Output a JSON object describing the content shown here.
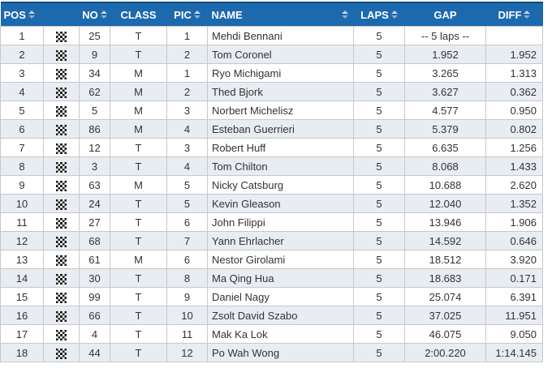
{
  "colors": {
    "header_bg": "#1c69ae",
    "header_border_top": "#0d4c84",
    "header_text": "#ffffff",
    "row_alt_bg": "#e8edf3",
    "grid_border": "#c8c8c8",
    "cell_text": "#333333",
    "sort_arrow_up": "#ccd5dd",
    "sort_arrow_down": "#97adc2",
    "flag_dark": "#1a1a1a"
  },
  "table": {
    "columns": [
      {
        "key": "pos",
        "label": "POS",
        "sortable": true
      },
      {
        "key": "flag",
        "label": "",
        "sortable": false,
        "icon": "checkered-flag-icon"
      },
      {
        "key": "no",
        "label": "NO",
        "sortable": true
      },
      {
        "key": "class",
        "label": "CLASS",
        "sortable": false
      },
      {
        "key": "pic",
        "label": "PIC",
        "sortable": true
      },
      {
        "key": "name",
        "label": "NAME",
        "sortable": true
      },
      {
        "key": "laps",
        "label": "LAPS",
        "sortable": true
      },
      {
        "key": "gap",
        "label": "GAP",
        "sortable": false
      },
      {
        "key": "diff",
        "label": "DIFF",
        "sortable": true
      }
    ],
    "rows": [
      {
        "pos": "1",
        "flag": "checkered-flag",
        "no": "25",
        "class": "T",
        "pic": "1",
        "name": "Mehdi Bennani",
        "laps": "5",
        "gap": "-- 5 laps --",
        "diff": ""
      },
      {
        "pos": "2",
        "flag": "checkered-flag",
        "no": "9",
        "class": "T",
        "pic": "2",
        "name": "Tom Coronel",
        "laps": "5",
        "gap": "1.952",
        "diff": "1.952"
      },
      {
        "pos": "3",
        "flag": "checkered-flag",
        "no": "34",
        "class": "M",
        "pic": "1",
        "name": "Ryo Michigami",
        "laps": "5",
        "gap": "3.265",
        "diff": "1.313"
      },
      {
        "pos": "4",
        "flag": "checkered-flag",
        "no": "62",
        "class": "M",
        "pic": "2",
        "name": "Thed Bjork",
        "laps": "5",
        "gap": "3.627",
        "diff": "0.362"
      },
      {
        "pos": "5",
        "flag": "checkered-flag",
        "no": "5",
        "class": "M",
        "pic": "3",
        "name": "Norbert Michelisz",
        "laps": "5",
        "gap": "4.577",
        "diff": "0.950"
      },
      {
        "pos": "6",
        "flag": "checkered-flag",
        "no": "86",
        "class": "M",
        "pic": "4",
        "name": "Esteban Guerrieri",
        "laps": "5",
        "gap": "5.379",
        "diff": "0.802"
      },
      {
        "pos": "7",
        "flag": "checkered-flag",
        "no": "12",
        "class": "T",
        "pic": "3",
        "name": "Robert Huff",
        "laps": "5",
        "gap": "6.635",
        "diff": "1.256"
      },
      {
        "pos": "8",
        "flag": "checkered-flag",
        "no": "3",
        "class": "T",
        "pic": "4",
        "name": "Tom Chilton",
        "laps": "5",
        "gap": "8.068",
        "diff": "1.433"
      },
      {
        "pos": "9",
        "flag": "checkered-flag",
        "no": "63",
        "class": "M",
        "pic": "5",
        "name": "Nicky Catsburg",
        "laps": "5",
        "gap": "10.688",
        "diff": "2.620"
      },
      {
        "pos": "10",
        "flag": "checkered-flag",
        "no": "24",
        "class": "T",
        "pic": "5",
        "name": "Kevin Gleason",
        "laps": "5",
        "gap": "12.040",
        "diff": "1.352"
      },
      {
        "pos": "11",
        "flag": "checkered-flag",
        "no": "27",
        "class": "T",
        "pic": "6",
        "name": "John Filippi",
        "laps": "5",
        "gap": "13.946",
        "diff": "1.906"
      },
      {
        "pos": "12",
        "flag": "checkered-flag",
        "no": "68",
        "class": "T",
        "pic": "7",
        "name": "Yann Ehrlacher",
        "laps": "5",
        "gap": "14.592",
        "diff": "0.646"
      },
      {
        "pos": "13",
        "flag": "checkered-flag",
        "no": "61",
        "class": "M",
        "pic": "6",
        "name": "Nestor Girolami",
        "laps": "5",
        "gap": "18.512",
        "diff": "3.920"
      },
      {
        "pos": "14",
        "flag": "checkered-flag",
        "no": "30",
        "class": "T",
        "pic": "8",
        "name": "Ma Qing Hua",
        "laps": "5",
        "gap": "18.683",
        "diff": "0.171"
      },
      {
        "pos": "15",
        "flag": "checkered-flag",
        "no": "99",
        "class": "T",
        "pic": "9",
        "name": "Daniel Nagy",
        "laps": "5",
        "gap": "25.074",
        "diff": "6.391"
      },
      {
        "pos": "16",
        "flag": "checkered-flag",
        "no": "66",
        "class": "T",
        "pic": "10",
        "name": "Zsolt David Szabo",
        "laps": "5",
        "gap": "37.025",
        "diff": "11.951"
      },
      {
        "pos": "17",
        "flag": "checkered-flag",
        "no": "4",
        "class": "T",
        "pic": "11",
        "name": "Mak Ka Lok",
        "laps": "5",
        "gap": "46.075",
        "diff": "9.050"
      },
      {
        "pos": "18",
        "flag": "checkered-flag",
        "no": "44",
        "class": "T",
        "pic": "12",
        "name": "Po Wah Wong",
        "laps": "5",
        "gap": "2:00.220",
        "diff": "1:14.145"
      }
    ]
  }
}
